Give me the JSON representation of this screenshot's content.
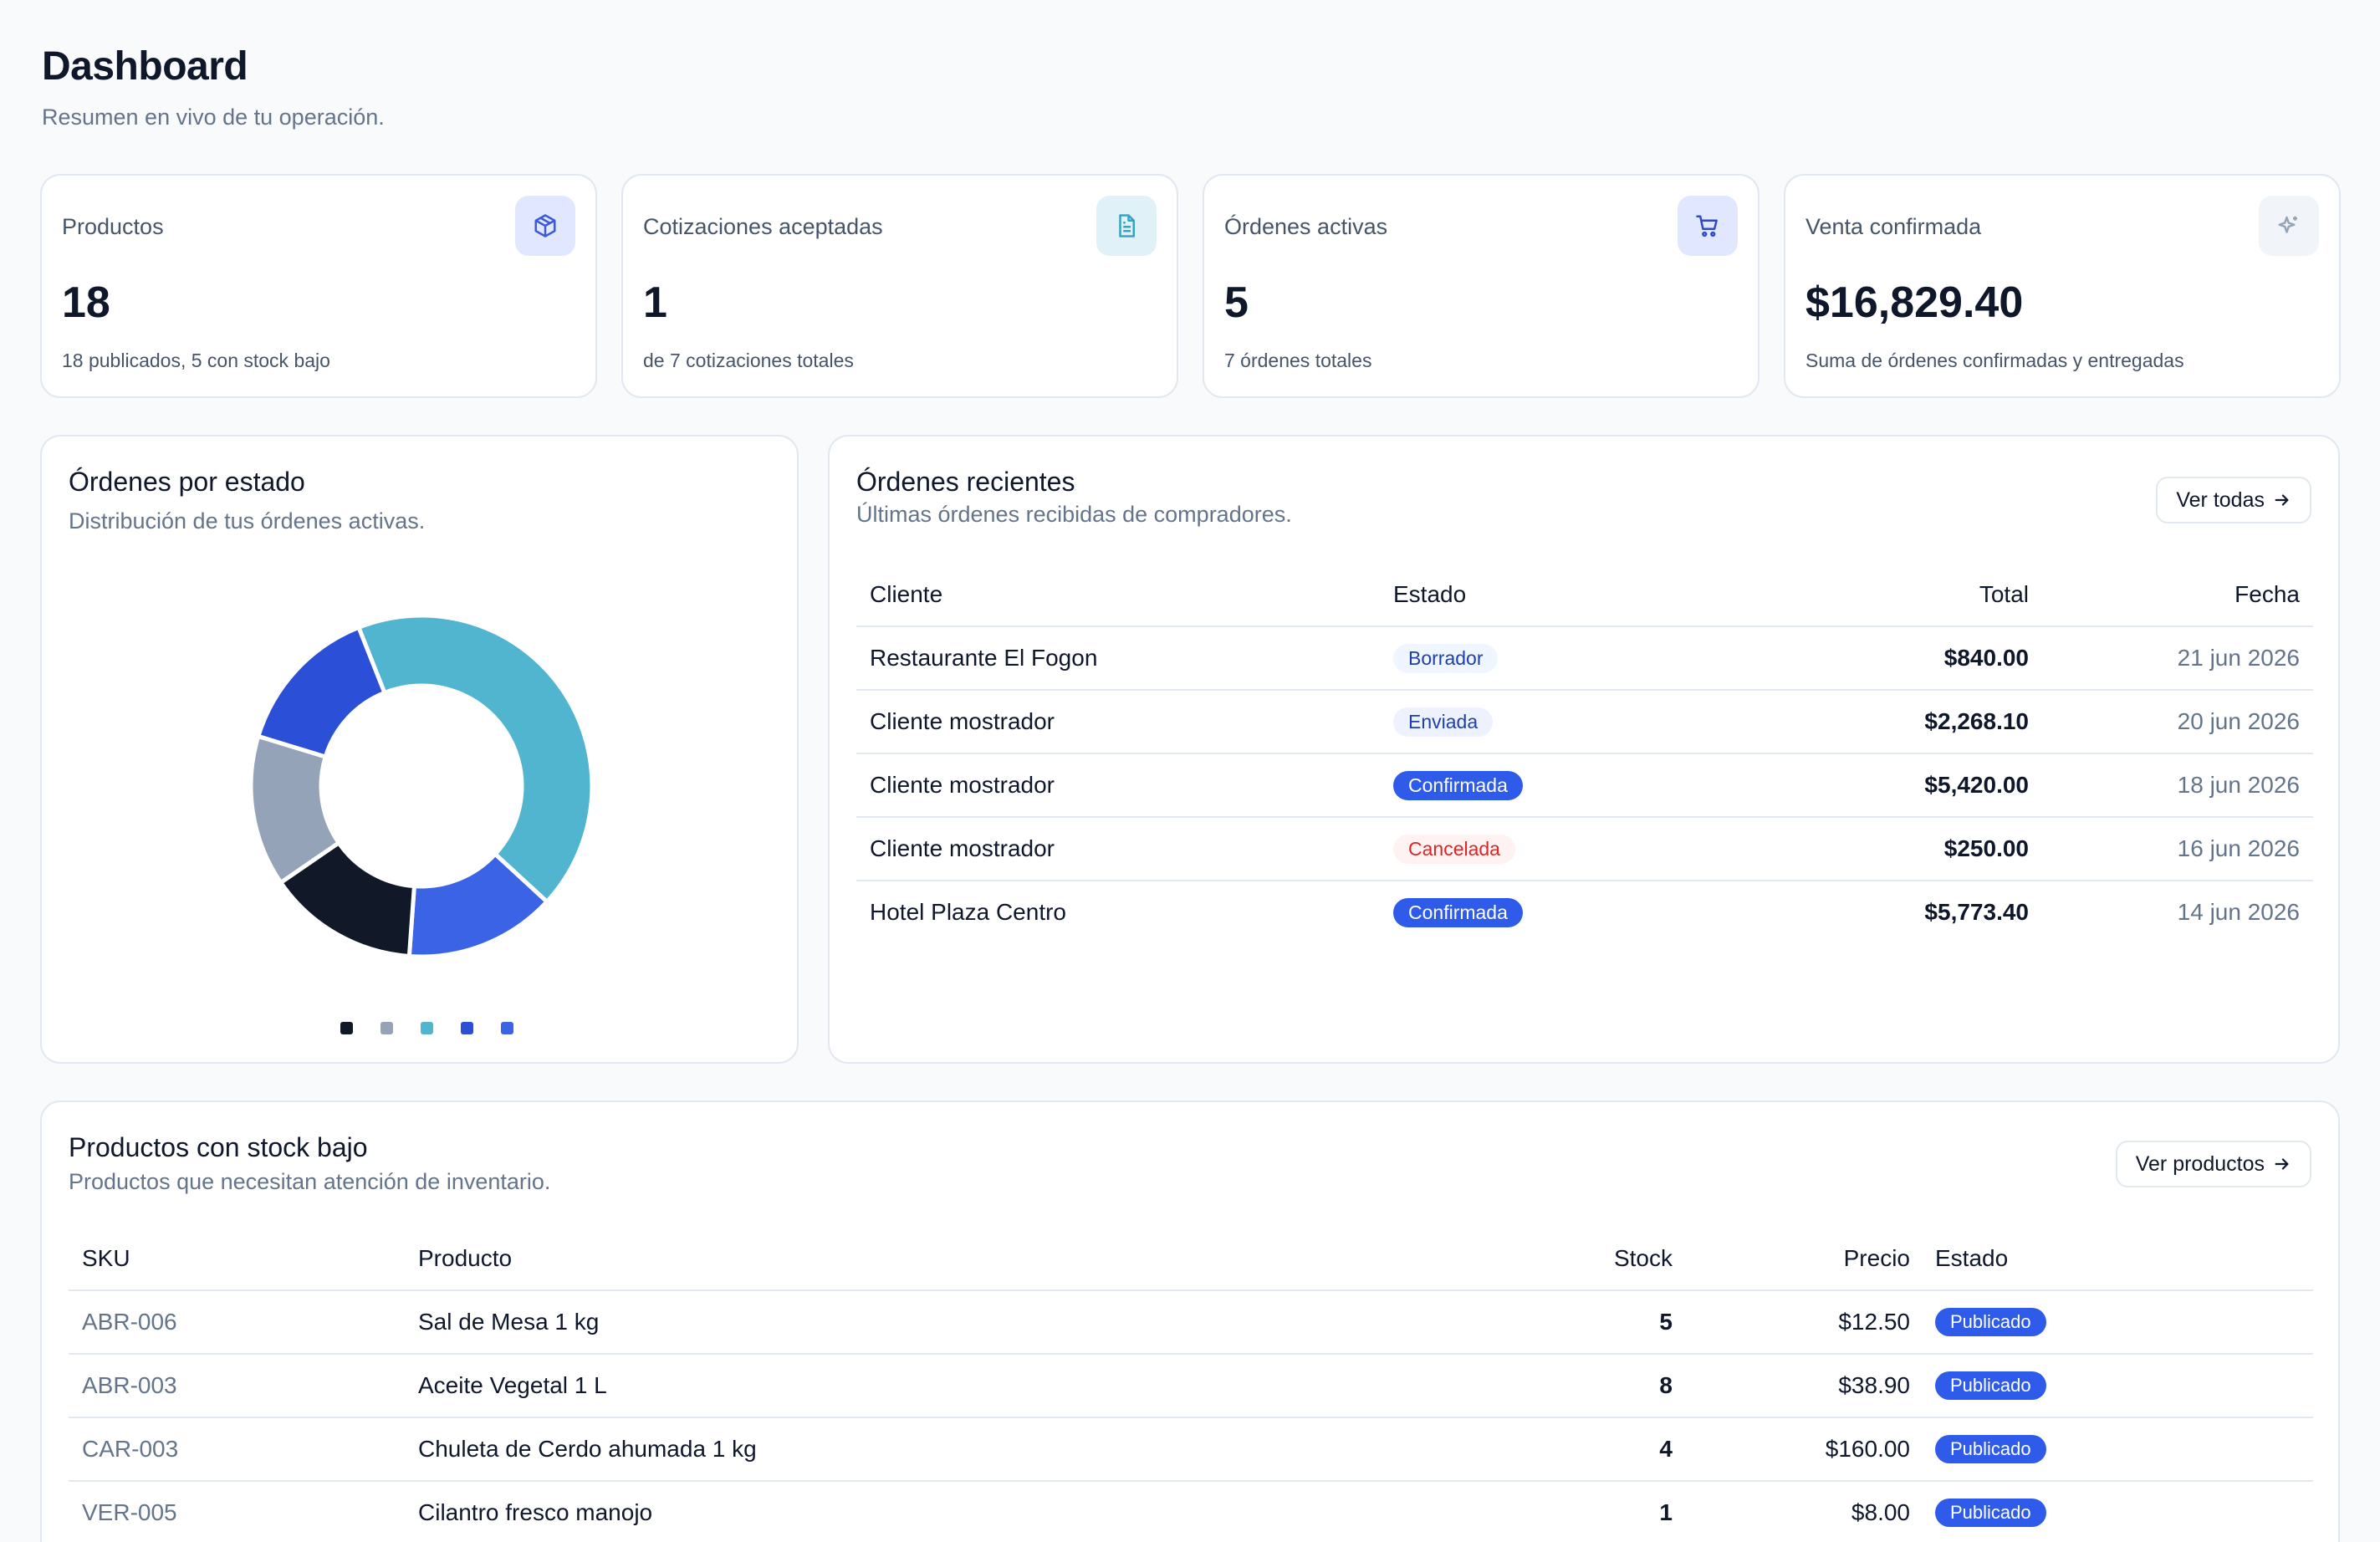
{
  "header": {
    "title": "Dashboard",
    "subtitle": "Resumen en vivo de tu operación."
  },
  "stats": [
    {
      "label": "Productos",
      "value": "18",
      "sub": "18 publicados, 5 con stock bajo",
      "icon": "box-icon",
      "icon_bg": "#e0e7ff",
      "icon_color": "#3b5bdb"
    },
    {
      "label": "Cotizaciones aceptadas",
      "value": "1",
      "sub": "de 7 cotizaciones totales",
      "icon": "document-icon",
      "icon_bg": "#e0f2f7",
      "icon_color": "#38a3c2"
    },
    {
      "label": "Órdenes activas",
      "value": "5",
      "sub": "7 órdenes totales",
      "icon": "cart-icon",
      "icon_bg": "#e0e7ff",
      "icon_color": "#2f4ac8"
    },
    {
      "label": "Venta confirmada",
      "value": "$16,829.40",
      "sub": "Suma de órdenes confirmadas y entregadas",
      "icon": "sparkle-icon",
      "icon_bg": "#f1f5f9",
      "icon_color": "#94a3b8"
    }
  ],
  "orders_by_status": {
    "title": "Órdenes por estado",
    "subtitle": "Distribución de tus órdenes activas."
  },
  "chart_data": {
    "type": "pie",
    "donut": true,
    "title": "",
    "slices": [
      {
        "value": 1,
        "color": "#111827"
      },
      {
        "value": 1,
        "color": "#94a3b8"
      },
      {
        "value": 3,
        "color": "#52b5d0"
      },
      {
        "value": 1,
        "color": "#2b4fd6"
      },
      {
        "value": 1,
        "color": "#3b63e6"
      }
    ],
    "legend_placement": "bottom"
  },
  "recent_orders": {
    "title": "Órdenes recientes",
    "subtitle": "Últimas órdenes recibidas de compradores.",
    "button_label": "Ver todas",
    "columns": [
      "Cliente",
      "Estado",
      "Total",
      "Fecha"
    ],
    "rows": [
      {
        "cliente": "Restaurante El Fogon",
        "estado": "Borrador",
        "estado_style": "b-draft",
        "total": "$840.00",
        "fecha": "21 jun 2026"
      },
      {
        "cliente": "Cliente mostrador",
        "estado": "Enviada",
        "estado_style": "b-sent",
        "total": "$2,268.10",
        "fecha": "20 jun 2026"
      },
      {
        "cliente": "Cliente mostrador",
        "estado": "Confirmada",
        "estado_style": "b-conf",
        "total": "$5,420.00",
        "fecha": "18 jun 2026"
      },
      {
        "cliente": "Cliente mostrador",
        "estado": "Cancelada",
        "estado_style": "b-cancel",
        "total": "$250.00",
        "fecha": "16 jun 2026"
      },
      {
        "cliente": "Hotel Plaza Centro",
        "estado": "Confirmada",
        "estado_style": "b-conf",
        "total": "$5,773.40",
        "fecha": "14 jun 2026"
      }
    ]
  },
  "low_stock": {
    "title": "Productos con stock bajo",
    "subtitle": "Productos que necesitan atención de inventario.",
    "button_label": "Ver productos",
    "columns": [
      "SKU",
      "Producto",
      "Stock",
      "Precio",
      "Estado"
    ],
    "rows": [
      {
        "sku": "ABR-006",
        "producto": "Sal de Mesa 1 kg",
        "stock": "5",
        "precio": "$12.50",
        "estado": "Publicado"
      },
      {
        "sku": "ABR-003",
        "producto": "Aceite Vegetal 1 L",
        "stock": "8",
        "precio": "$38.90",
        "estado": "Publicado"
      },
      {
        "sku": "CAR-003",
        "producto": "Chuleta de Cerdo ahumada 1 kg",
        "stock": "4",
        "precio": "$160.00",
        "estado": "Publicado"
      },
      {
        "sku": "VER-005",
        "producto": "Cilantro fresco manojo",
        "stock": "1",
        "precio": "$8.00",
        "estado": "Publicado"
      }
    ]
  }
}
